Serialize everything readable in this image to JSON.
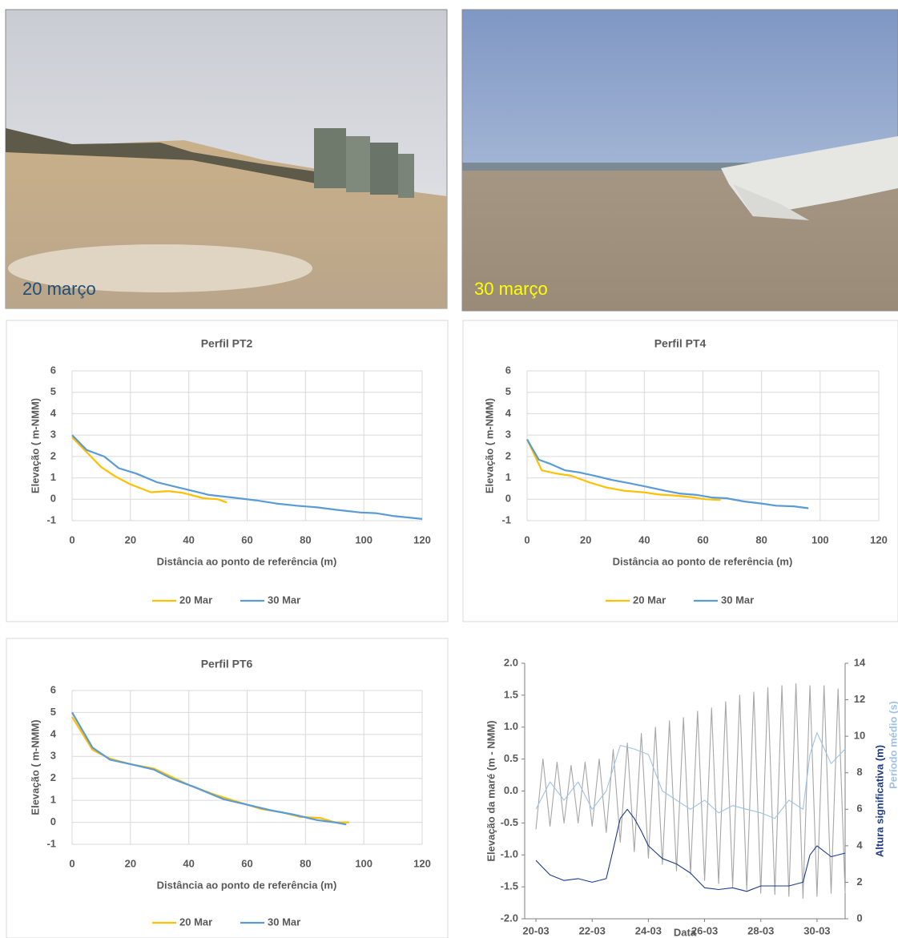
{
  "photos": [
    {
      "caption": "20 março"
    },
    {
      "caption": "30 março"
    }
  ],
  "chart_data": [
    {
      "type": "line",
      "title": "Perfil PT2",
      "x_label": "Distância ao ponto de referência (m)",
      "y_label": "Elevação ( m-NMM)",
      "xlim": [
        0,
        120
      ],
      "xticks": [
        0,
        20,
        40,
        60,
        80,
        100,
        120
      ],
      "ylim": [
        -1,
        6
      ],
      "yticks": [
        -1,
        0,
        1,
        2,
        3,
        4,
        5,
        6
      ],
      "grid": true,
      "legend": "bottom",
      "series": [
        {
          "name": "20 Mar",
          "color": "#ffc000",
          "x": [
            0,
            5,
            10,
            15,
            20,
            27,
            33,
            38,
            45,
            50,
            53
          ],
          "values": [
            2.9,
            2.2,
            1.5,
            1.05,
            0.7,
            0.33,
            0.38,
            0.3,
            0.05,
            0,
            -0.15
          ]
        },
        {
          "name": "30 Mar",
          "color": "#5b9bd5",
          "x": [
            0,
            5,
            11,
            16,
            22,
            29,
            35,
            41,
            47,
            55,
            63,
            70,
            77,
            84,
            91,
            99,
            104,
            110,
            120
          ],
          "values": [
            3,
            2.3,
            2,
            1.45,
            1.2,
            0.8,
            0.6,
            0.4,
            0.2,
            0.08,
            -0.05,
            -0.2,
            -0.3,
            -0.38,
            -0.5,
            -0.62,
            -0.65,
            -0.78,
            -0.92
          ]
        }
      ]
    },
    {
      "type": "line",
      "title": "Perfil PT4",
      "x_label": "Distância ao ponto de referência (m)",
      "y_label": "Elevação ( m-NMM)",
      "xlim": [
        0,
        120
      ],
      "xticks": [
        0,
        20,
        40,
        60,
        80,
        100,
        120
      ],
      "ylim": [
        -1,
        6
      ],
      "yticks": [
        -1,
        0,
        1,
        2,
        3,
        4,
        5,
        6
      ],
      "grid": true,
      "legend": "bottom",
      "series": [
        {
          "name": "20 Mar",
          "color": "#ffc000",
          "x": [
            0,
            5,
            10,
            15,
            21,
            27,
            33,
            40,
            45,
            50,
            56,
            61,
            66
          ],
          "values": [
            2.8,
            1.35,
            1.2,
            1.1,
            0.8,
            0.55,
            0.4,
            0.32,
            0.22,
            0.18,
            0.1,
            0,
            -0.03
          ]
        },
        {
          "name": "30 Mar",
          "color": "#5b9bd5",
          "x": [
            0,
            4,
            8,
            13,
            18,
            23,
            29,
            35,
            41,
            47,
            52,
            58,
            63,
            68,
            74,
            80,
            85,
            91,
            96
          ],
          "values": [
            2.8,
            1.85,
            1.65,
            1.35,
            1.25,
            1.1,
            0.9,
            0.75,
            0.58,
            0.4,
            0.27,
            0.2,
            0.08,
            0.05,
            -0.1,
            -0.2,
            -0.3,
            -0.33,
            -0.42
          ]
        }
      ]
    },
    {
      "type": "line",
      "title": "Perfil PT6",
      "x_label": "Distância ao ponto de referência (m)",
      "y_label": "Elevação ( m-NMM)",
      "xlim": [
        0,
        120
      ],
      "xticks": [
        0,
        20,
        40,
        60,
        80,
        100,
        120
      ],
      "ylim": [
        -1,
        6
      ],
      "yticks": [
        -1,
        0,
        1,
        2,
        3,
        4,
        5,
        6
      ],
      "grid": true,
      "legend": "bottom",
      "series": [
        {
          "name": "20 Mar",
          "color": "#ffc000",
          "x": [
            0,
            7,
            13,
            20,
            28,
            32,
            40,
            48,
            55,
            65,
            72,
            78,
            85,
            90,
            95
          ],
          "values": [
            4.8,
            3.3,
            2.9,
            2.65,
            2.45,
            2.2,
            1.7,
            1.3,
            1.0,
            0.6,
            0.45,
            0.25,
            0.2,
            0.0,
            0
          ]
        },
        {
          "name": "30 Mar",
          "color": "#5b9bd5",
          "x": [
            0,
            7,
            13,
            20,
            28,
            34,
            42,
            52,
            60,
            68,
            76,
            84,
            90,
            94
          ],
          "values": [
            5,
            3.4,
            2.85,
            2.65,
            2.4,
            2.0,
            1.6,
            1.05,
            0.8,
            0.55,
            0.35,
            0.1,
            0,
            -0.1
          ]
        }
      ]
    },
    {
      "type": "line",
      "x_label": "Data",
      "y_label": "Elevação da maré (m - NMM)",
      "y2_label": "Altura significativa (m)",
      "y2_label_2": "Período médio (s)",
      "xlim": [
        19.6,
        31
      ],
      "xticks": [
        {
          "value": 20,
          "label": "20-03"
        },
        {
          "value": 22,
          "label": "22-03"
        },
        {
          "value": 24,
          "label": "24-03"
        },
        {
          "value": 26,
          "label": "26-03"
        },
        {
          "value": 28,
          "label": "28-03"
        },
        {
          "value": 30,
          "label": "30-03"
        }
      ],
      "ylim": [
        -2,
        2
      ],
      "yticks": [
        {
          "value": -2,
          "label": "-2.0"
        },
        -1.5,
        {
          "value": -1,
          "label": "-1.0"
        },
        -0.5,
        {
          "value": 0,
          "label": "0.0"
        },
        0.5,
        {
          "value": 1,
          "label": "1.0"
        },
        1.5,
        {
          "value": 2,
          "label": "2.0"
        }
      ],
      "y2lim": [
        0,
        14
      ],
      "y2ticks": [
        0,
        2,
        4,
        6,
        8,
        10,
        12,
        14
      ],
      "grid": false,
      "series": [
        {
          "color": "#a6a6a6",
          "x": [
            20,
            20.25,
            20.5,
            20.75,
            21,
            21.25,
            21.5,
            21.75,
            22,
            22.25,
            22.5,
            22.75,
            23,
            23.25,
            23.5,
            23.75,
            24,
            24.25,
            24.5,
            24.75,
            25,
            25.25,
            25.5,
            25.75,
            26,
            26.25,
            26.5,
            26.75,
            27,
            27.25,
            27.5,
            27.75,
            28,
            28.25,
            28.5,
            28.75,
            29,
            29.25,
            29.5,
            29.75,
            30,
            30.25,
            30.5,
            30.75,
            31
          ],
          "values": [
            -0.6,
            0.5,
            -0.55,
            0.45,
            -0.5,
            0.4,
            -0.5,
            0.45,
            -0.55,
            0.5,
            -0.65,
            0.65,
            -0.8,
            0.75,
            -0.95,
            0.9,
            -1.05,
            1.0,
            -1.15,
            1.1,
            -1.25,
            1.15,
            -1.3,
            1.25,
            -1.4,
            1.3,
            -1.45,
            1.4,
            -1.5,
            1.5,
            -1.55,
            1.55,
            -1.6,
            1.62,
            -1.62,
            1.65,
            -1.65,
            1.68,
            -1.68,
            1.65,
            -1.65,
            1.65,
            -1.6,
            1.6,
            -1.6
          ]
        },
        {
          "color": "#9dc3e6",
          "axis": "y2",
          "x": [
            20,
            20.5,
            21,
            21.5,
            22,
            22.5,
            23,
            23.5,
            24,
            24.5,
            25,
            25.5,
            26,
            26.5,
            27,
            27.5,
            28,
            28.5,
            29,
            29.5,
            29.75,
            30,
            30.5,
            31
          ],
          "values": [
            6,
            7.5,
            6.5,
            7.5,
            6,
            7,
            9.5,
            9.3,
            9,
            7,
            6.5,
            6,
            6.5,
            5.8,
            6.2,
            6,
            5.8,
            5.5,
            6.5,
            6,
            9,
            10.2,
            8.5,
            9.3
          ]
        },
        {
          "color": "#1f3c88",
          "axis": "y2",
          "x": [
            20,
            20.5,
            21,
            21.5,
            22,
            22.5,
            22.75,
            23,
            23.25,
            23.5,
            23.75,
            24,
            24.5,
            25,
            25.5,
            26,
            26.5,
            27,
            27.5,
            28,
            28.5,
            29,
            29.5,
            29.75,
            30,
            30.5,
            31
          ],
          "values": [
            3.2,
            2.4,
            2.1,
            2.2,
            2,
            2.2,
            3.8,
            5.5,
            6,
            5.5,
            4.8,
            4,
            3.3,
            3,
            2.5,
            1.7,
            1.6,
            1.7,
            1.5,
            1.8,
            1.8,
            1.8,
            2,
            3.5,
            4,
            3.4,
            3.6
          ]
        }
      ]
    }
  ]
}
